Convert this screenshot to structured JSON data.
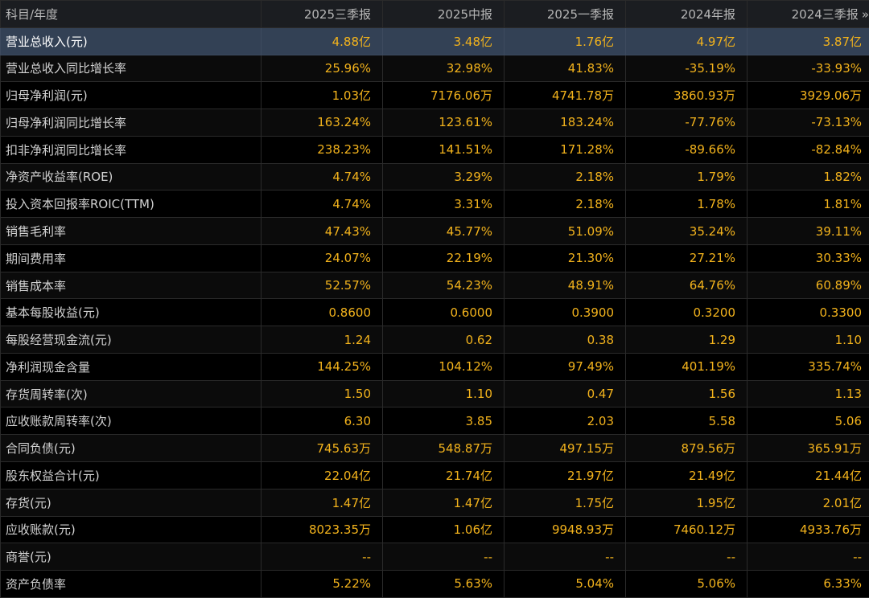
{
  "header": {
    "label": "科目/年度",
    "periods": [
      "2025三季报",
      "2025中报",
      "2025一季报",
      "2024年报",
      "2024三季报"
    ],
    "more_icon": "double-chevron-right-icon",
    "more_glyph": "»"
  },
  "colors": {
    "value_text": "#f3b31c",
    "label_text": "#d2d2d2",
    "selected_row_bg": "#334155",
    "header_bg": "#1b1d21"
  },
  "selected_row_index": 0,
  "rows": [
    {
      "label": "营业总收入(元)",
      "values": [
        "4.88亿",
        "3.48亿",
        "1.76亿",
        "4.97亿",
        "3.87亿"
      ]
    },
    {
      "label": "营业总收入同比增长率",
      "values": [
        "25.96%",
        "32.98%",
        "41.83%",
        "-35.19%",
        "-33.93%"
      ]
    },
    {
      "label": "归母净利润(元)",
      "values": [
        "1.03亿",
        "7176.06万",
        "4741.78万",
        "3860.93万",
        "3929.06万"
      ]
    },
    {
      "label": "归母净利润同比增长率",
      "values": [
        "163.24%",
        "123.61%",
        "183.24%",
        "-77.76%",
        "-73.13%"
      ]
    },
    {
      "label": "扣非净利润同比增长率",
      "values": [
        "238.23%",
        "141.51%",
        "171.28%",
        "-89.66%",
        "-82.84%"
      ]
    },
    {
      "label": "净资产收益率(ROE)",
      "values": [
        "4.74%",
        "3.29%",
        "2.18%",
        "1.79%",
        "1.82%"
      ]
    },
    {
      "label": "投入资本回报率ROIC(TTM)",
      "values": [
        "4.74%",
        "3.31%",
        "2.18%",
        "1.78%",
        "1.81%"
      ]
    },
    {
      "label": "销售毛利率",
      "values": [
        "47.43%",
        "45.77%",
        "51.09%",
        "35.24%",
        "39.11%"
      ]
    },
    {
      "label": "期间费用率",
      "values": [
        "24.07%",
        "22.19%",
        "21.30%",
        "27.21%",
        "30.33%"
      ]
    },
    {
      "label": "销售成本率",
      "values": [
        "52.57%",
        "54.23%",
        "48.91%",
        "64.76%",
        "60.89%"
      ]
    },
    {
      "label": "基本每股收益(元)",
      "values": [
        "0.8600",
        "0.6000",
        "0.3900",
        "0.3200",
        "0.3300"
      ]
    },
    {
      "label": "每股经营现金流(元)",
      "values": [
        "1.24",
        "0.62",
        "0.38",
        "1.29",
        "1.10"
      ]
    },
    {
      "label": "净利润现金含量",
      "values": [
        "144.25%",
        "104.12%",
        "97.49%",
        "401.19%",
        "335.74%"
      ]
    },
    {
      "label": "存货周转率(次)",
      "values": [
        "1.50",
        "1.10",
        "0.47",
        "1.56",
        "1.13"
      ]
    },
    {
      "label": "应收账款周转率(次)",
      "values": [
        "6.30",
        "3.85",
        "2.03",
        "5.58",
        "5.06"
      ]
    },
    {
      "label": "合同负债(元)",
      "values": [
        "745.63万",
        "548.87万",
        "497.15万",
        "879.56万",
        "365.91万"
      ]
    },
    {
      "label": "股东权益合计(元)",
      "values": [
        "22.04亿",
        "21.74亿",
        "21.97亿",
        "21.49亿",
        "21.44亿"
      ]
    },
    {
      "label": "存货(元)",
      "values": [
        "1.47亿",
        "1.47亿",
        "1.75亿",
        "1.95亿",
        "2.01亿"
      ]
    },
    {
      "label": "应收账款(元)",
      "values": [
        "8023.35万",
        "1.06亿",
        "9948.93万",
        "7460.12万",
        "4933.76万"
      ]
    },
    {
      "label": "商誉(元)",
      "values": [
        "--",
        "--",
        "--",
        "--",
        "--"
      ]
    },
    {
      "label": "资产负债率",
      "values": [
        "5.22%",
        "5.63%",
        "5.04%",
        "5.06%",
        "6.33%"
      ]
    }
  ]
}
